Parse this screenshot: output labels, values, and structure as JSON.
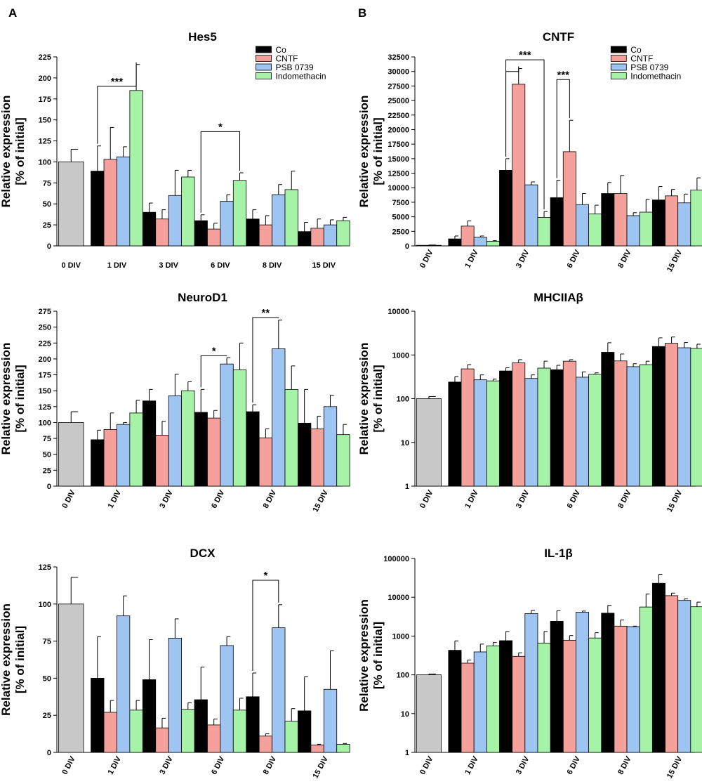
{
  "panel_labels": [
    "A",
    "B"
  ],
  "colors": {
    "Initial": "#c8c8c8",
    "Co": "#000000",
    "CNTF": "#f4a09b",
    "PSB 0739": "#9ec4f2",
    "Indomethacin": "#a6f2a6"
  },
  "chart_data": [
    {
      "type": "bar",
      "scale": "linear",
      "title": "Hes5",
      "ylabel": [
        "Relative expression",
        "[% of initial]"
      ],
      "ylim": [
        0,
        225
      ],
      "yticks": [
        0,
        25,
        50,
        75,
        100,
        125,
        150,
        175,
        200,
        225
      ],
      "xtick_rotated": false,
      "legend": [
        "Co",
        "CNTF",
        "PSB 0739",
        "Indomethacin"
      ],
      "initial": {
        "label": "0 DIV",
        "value": 100,
        "err": 15
      },
      "categories": [
        "1 DIV",
        "3 DIV",
        "6 DIV",
        "8 DIV",
        "15 DIV"
      ],
      "series": [
        {
          "name": "Co",
          "values": [
            89,
            40,
            30,
            32,
            17
          ],
          "errors": [
            30,
            11,
            7,
            11,
            11
          ]
        },
        {
          "name": "CNTF",
          "values": [
            103,
            32,
            20,
            25,
            21
          ],
          "errors": [
            38,
            11,
            7,
            11,
            11
          ]
        },
        {
          "name": "PSB 0739",
          "values": [
            106,
            60,
            53,
            61,
            25
          ],
          "errors": [
            12,
            30,
            8,
            12,
            6
          ]
        },
        {
          "name": "Indomethacin",
          "values": [
            185,
            82,
            78,
            67,
            30
          ],
          "errors": [
            31,
            8,
            9,
            22,
            4
          ]
        }
      ],
      "significance": [
        {
          "category": 0,
          "from": 0,
          "to": 3,
          "level": 190,
          "stars": "***"
        },
        {
          "category": 2,
          "from": 0,
          "to": 3,
          "level": 136,
          "stars": "*"
        }
      ]
    },
    {
      "type": "bar",
      "scale": "linear",
      "title": "CNTF",
      "ylabel": [
        "Relative expression",
        "[% of initial]"
      ],
      "ylim": [
        0,
        32500
      ],
      "yticks": [
        0,
        2500,
        5000,
        7500,
        10000,
        12500,
        15000,
        17500,
        20000,
        22500,
        25000,
        27500,
        30000,
        32500
      ],
      "xtick_rotated": true,
      "legend": [
        "Co",
        "CNTF",
        "PSB 0739",
        "Indomethacin"
      ],
      "initial": {
        "label": "0 DIV",
        "value": 100,
        "err": 50
      },
      "categories": [
        "1 DIV",
        "3 DIV",
        "6 DIV",
        "8 DIV",
        "15 DIV"
      ],
      "series": [
        {
          "name": "Co",
          "values": [
            1200,
            13000,
            8300,
            9000,
            7900
          ],
          "errors": [
            500,
            2000,
            3000,
            1900,
            2300
          ]
        },
        {
          "name": "CNTF",
          "values": [
            3400,
            27800,
            16200,
            9000,
            8600
          ],
          "errors": [
            900,
            2700,
            5400,
            3100,
            1100
          ]
        },
        {
          "name": "PSB 0739",
          "values": [
            1500,
            10500,
            7100,
            5200,
            7400
          ],
          "errors": [
            200,
            500,
            1900,
            500,
            1500
          ]
        },
        {
          "name": "Indomethacin",
          "values": [
            800,
            4900,
            5500,
            5800,
            9600
          ],
          "errors": [
            100,
            1000,
            1500,
            2200,
            2100
          ]
        }
      ],
      "significance": [
        {
          "category": 1,
          "from": 0,
          "to": 3,
          "level": 32000,
          "stars": "***"
        },
        {
          "category": 1,
          "from": 0,
          "to": 1,
          "level": 30000,
          "stars": ""
        },
        {
          "category": 2,
          "from": 0,
          "to": 1,
          "level": 28600,
          "stars": "***"
        }
      ]
    },
    {
      "type": "bar",
      "scale": "linear",
      "title": "NeuroD1",
      "ylabel": [
        "Relative expression",
        "[% of initial]"
      ],
      "ylim": [
        0,
        275
      ],
      "yticks": [
        0,
        25,
        50,
        75,
        100,
        125,
        150,
        175,
        200,
        225,
        250,
        275
      ],
      "xtick_rotated": true,
      "legend": [],
      "initial": {
        "label": "0 DIV",
        "value": 100,
        "err": 17
      },
      "categories": [
        "1 DIV",
        "3 DIV",
        "6 DIV",
        "8 DIV",
        "15 DIV"
      ],
      "series": [
        {
          "name": "Co",
          "values": [
            73,
            134,
            116,
            117,
            99
          ],
          "errors": [
            15,
            18,
            36,
            11,
            53
          ]
        },
        {
          "name": "CNTF",
          "values": [
            89,
            80,
            107,
            76,
            90
          ],
          "errors": [
            26,
            22,
            12,
            14,
            20
          ]
        },
        {
          "name": "PSB 0739",
          "values": [
            97,
            142,
            192,
            216,
            125
          ],
          "errors": [
            3,
            34,
            10,
            45,
            18
          ]
        },
        {
          "name": "Indomethacin",
          "values": [
            115,
            150,
            183,
            152,
            81
          ],
          "errors": [
            20,
            14,
            42,
            37,
            16
          ]
        }
      ],
      "significance": [
        {
          "category": 2,
          "from": 0,
          "to": 2,
          "level": 205,
          "stars": "*"
        },
        {
          "category": 3,
          "from": 0,
          "to": 2,
          "level": 265,
          "stars": "**"
        }
      ]
    },
    {
      "type": "bar",
      "scale": "log",
      "title": "MHCIIAβ",
      "ylabel": [
        "Relative expression",
        "[% of initial]"
      ],
      "ylim": [
        1,
        10000
      ],
      "yticks": [
        1,
        10,
        100,
        1000,
        10000
      ],
      "xtick_rotated": true,
      "legend": [],
      "initial": {
        "label": "0 DIV",
        "value": 100,
        "err": 12
      },
      "categories": [
        "1 DIV",
        "3 DIV",
        "6 DIV",
        "8 DIV",
        "15 DIV"
      ],
      "series": [
        {
          "name": "Co",
          "values": [
            240,
            430,
            460,
            1150,
            1560
          ],
          "errors": [
            80,
            80,
            120,
            750,
            900
          ]
        },
        {
          "name": "CNTF",
          "values": [
            480,
            660,
            720,
            730,
            1850
          ],
          "errors": [
            120,
            120,
            60,
            320,
            720
          ]
        },
        {
          "name": "PSB 0739",
          "values": [
            270,
            290,
            310,
            540,
            1460
          ],
          "errors": [
            80,
            60,
            100,
            90,
            460
          ]
        },
        {
          "name": "Indomethacin",
          "values": [
            255,
            500,
            360,
            600,
            1410
          ],
          "errors": [
            25,
            220,
            30,
            120,
            350
          ]
        }
      ],
      "significance": []
    },
    {
      "type": "bar",
      "scale": "linear",
      "title": "DCX",
      "ylabel": [
        "Relative expression",
        "[% of initial]"
      ],
      "ylim": [
        0,
        125
      ],
      "yticks": [
        0,
        25,
        50,
        75,
        100,
        125
      ],
      "xtick_rotated": true,
      "legend": [],
      "initial": {
        "label": "0 DIV",
        "value": 100,
        "err": 18
      },
      "categories": [
        "1 DIV",
        "3 DIV",
        "6 DIV",
        "8 DIV",
        "15 DIV"
      ],
      "series": [
        {
          "name": "Co",
          "values": [
            50,
            49,
            35.5,
            37.5,
            28
          ],
          "errors": [
            28,
            27,
            22,
            16,
            23
          ]
        },
        {
          "name": "CNTF",
          "values": [
            27,
            16.5,
            18.5,
            11,
            5
          ],
          "errors": [
            8,
            6.5,
            4,
            1.5,
            0.5
          ]
        },
        {
          "name": "PSB 0739",
          "values": [
            92,
            77,
            72,
            84,
            42.5
          ],
          "errors": [
            13.5,
            13,
            6,
            15.5,
            26
          ]
        },
        {
          "name": "Indomethacin",
          "values": [
            28.5,
            29,
            28.5,
            21,
            5.5
          ],
          "errors": [
            6.5,
            4.5,
            8,
            8.5,
            0.5
          ]
        }
      ],
      "significance": [
        {
          "category": 3,
          "from": 0,
          "to": 2,
          "level": 116,
          "stars": "*"
        }
      ]
    },
    {
      "type": "bar",
      "scale": "log",
      "title": "IL-1β",
      "ylabel": [
        "Relative expression",
        "[% of initial]"
      ],
      "ylim": [
        1,
        100000
      ],
      "yticks": [
        1,
        10,
        100,
        1000,
        10000,
        100000
      ],
      "xtick_rotated": true,
      "legend": [],
      "initial": {
        "label": "0 DIV",
        "value": 100,
        "err": 5
      },
      "categories": [
        "1 DIV",
        "3 DIV",
        "6 DIV",
        "8 DIV",
        "15 DIV"
      ],
      "series": [
        {
          "name": "Co",
          "values": [
            430,
            760,
            2400,
            3900,
            23000
          ],
          "errors": [
            320,
            550,
            2100,
            2300,
            16000
          ]
        },
        {
          "name": "CNTF",
          "values": [
            200,
            300,
            780,
            1800,
            11000
          ],
          "errors": [
            40,
            70,
            250,
            800,
            1800
          ]
        },
        {
          "name": "PSB 0739",
          "values": [
            390,
            3800,
            4100,
            1750,
            8300
          ],
          "errors": [
            230,
            800,
            300,
            50,
            800
          ]
        },
        {
          "name": "Indomethacin",
          "values": [
            560,
            660,
            890,
            5600,
            5700
          ],
          "errors": [
            120,
            650,
            330,
            6500,
            1800
          ]
        }
      ],
      "significance": []
    }
  ]
}
